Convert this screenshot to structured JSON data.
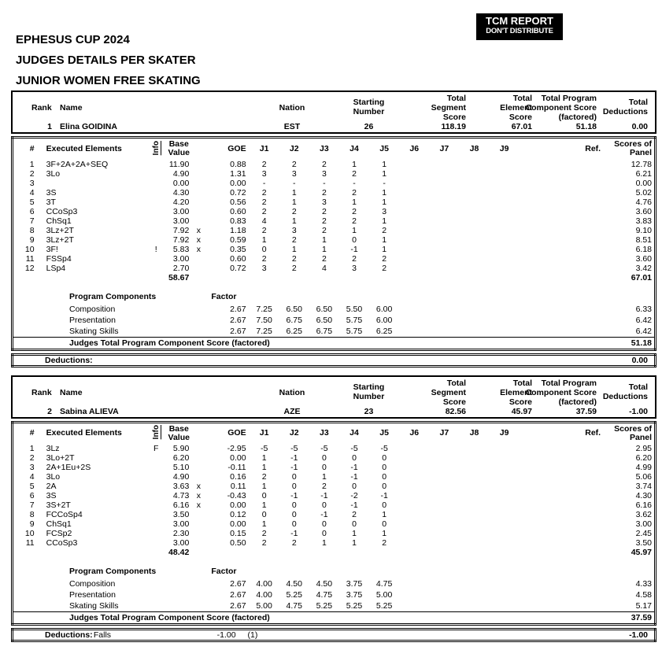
{
  "page": {
    "titles": [
      "EPHESUS CUP 2024",
      "JUDGES DETAILS PER SKATER",
      "JUNIOR WOMEN FREE SKATING"
    ],
    "stamp": {
      "line1": "TCM REPORT",
      "line2": "DON'T DISTRIBUTE"
    }
  },
  "summary_header": {
    "rank": "Rank",
    "name": "Name",
    "nation": "Nation",
    "starting": "Starting\nNumber",
    "segment": "Total\nSegment\nScore",
    "element": "Total\nElement\nScore",
    "pcs": "Total Program\nComponent Score\n(factored)",
    "deductions": "Total\nDeductions"
  },
  "elements_header": {
    "num": "#",
    "executed": "Executed Elements",
    "info": "Info",
    "base_value": "Base\nValue",
    "goe": "GOE",
    "judges": [
      "J1",
      "J2",
      "J3",
      "J4",
      "J5",
      "J6",
      "J7",
      "J8",
      "J9"
    ],
    "ref": "Ref.",
    "panel": "Scores of\nPanel"
  },
  "labels": {
    "program_components": "Program Components",
    "factor": "Factor",
    "judges_total": "Judges Total Program Component Score (factored)",
    "deductions": "Deductions:"
  },
  "skaters": [
    {
      "rank": "1",
      "name": "Elina GOIDINA",
      "nation": "EST",
      "starting_number": "26",
      "total_segment_score": "118.19",
      "total_element_score": "67.01",
      "total_pcs_factored": "51.18",
      "total_deductions": "0.00",
      "elements": [
        {
          "num": "1",
          "name": "3F+2A+2A+SEQ",
          "info": "",
          "bv": "11.90",
          "x": "",
          "goe": "0.88",
          "j": [
            "2",
            "2",
            "2",
            "1",
            "1"
          ],
          "panel": "12.78"
        },
        {
          "num": "2",
          "name": "3Lo",
          "info": "",
          "bv": "4.90",
          "x": "",
          "goe": "1.31",
          "j": [
            "3",
            "3",
            "3",
            "2",
            "1"
          ],
          "panel": "6.21"
        },
        {
          "num": "3",
          "name": "",
          "info": "",
          "bv": "0.00",
          "x": "",
          "goe": "0.00",
          "j": [
            "-",
            "-",
            "-",
            "-",
            "-"
          ],
          "panel": "0.00"
        },
        {
          "num": "4",
          "name": "3S",
          "info": "",
          "bv": "4.30",
          "x": "",
          "goe": "0.72",
          "j": [
            "2",
            "1",
            "2",
            "2",
            "1"
          ],
          "panel": "5.02"
        },
        {
          "num": "5",
          "name": "3T",
          "info": "",
          "bv": "4.20",
          "x": "",
          "goe": "0.56",
          "j": [
            "2",
            "1",
            "3",
            "1",
            "1"
          ],
          "panel": "4.76"
        },
        {
          "num": "6",
          "name": "CCoSp3",
          "info": "",
          "bv": "3.00",
          "x": "",
          "goe": "0.60",
          "j": [
            "2",
            "2",
            "2",
            "2",
            "3"
          ],
          "panel": "3.60"
        },
        {
          "num": "7",
          "name": "ChSq1",
          "info": "",
          "bv": "3.00",
          "x": "",
          "goe": "0.83",
          "j": [
            "4",
            "1",
            "2",
            "2",
            "1"
          ],
          "panel": "3.83"
        },
        {
          "num": "8",
          "name": "3Lz+2T",
          "info": "",
          "bv": "7.92",
          "x": "x",
          "goe": "1.18",
          "j": [
            "2",
            "3",
            "2",
            "1",
            "2"
          ],
          "panel": "9.10"
        },
        {
          "num": "9",
          "name": "3Lz+2T",
          "info": "",
          "bv": "7.92",
          "x": "x",
          "goe": "0.59",
          "j": [
            "1",
            "2",
            "1",
            "0",
            "1"
          ],
          "panel": "8.51"
        },
        {
          "num": "10",
          "name": "3F!",
          "info": "!",
          "bv": "5.83",
          "x": "x",
          "goe": "0.35",
          "j": [
            "0",
            "1",
            "1",
            "-1",
            "1"
          ],
          "panel": "6.18"
        },
        {
          "num": "11",
          "name": "FSSp4",
          "info": "",
          "bv": "3.00",
          "x": "",
          "goe": "0.60",
          "j": [
            "2",
            "2",
            "2",
            "2",
            "2"
          ],
          "panel": "3.60"
        },
        {
          "num": "12",
          "name": "LSp4",
          "info": "",
          "bv": "2.70",
          "x": "",
          "goe": "0.72",
          "j": [
            "3",
            "2",
            "4",
            "3",
            "2"
          ],
          "panel": "3.42"
        }
      ],
      "elements_bv_total": "58.67",
      "elements_panel_total": "67.01",
      "components": [
        {
          "name": "Composition",
          "factor": "2.67",
          "j": [
            "7.25",
            "6.50",
            "6.50",
            "5.50",
            "6.00"
          ],
          "panel": "6.33"
        },
        {
          "name": "Presentation",
          "factor": "2.67",
          "j": [
            "7.50",
            "6.75",
            "6.50",
            "5.75",
            "6.00"
          ],
          "panel": "6.42"
        },
        {
          "name": "Skating Skills",
          "factor": "2.67",
          "j": [
            "7.25",
            "6.25",
            "6.75",
            "5.75",
            "6.25"
          ],
          "panel": "6.42"
        }
      ],
      "judges_total_value": "51.18",
      "deductions": {
        "detail": "",
        "detail_value": "",
        "detail_count": "",
        "total": "0.00"
      }
    },
    {
      "rank": "2",
      "name": "Sabina ALIEVA",
      "nation": "AZE",
      "starting_number": "23",
      "total_segment_score": "82.56",
      "total_element_score": "45.97",
      "total_pcs_factored": "37.59",
      "total_deductions": "-1.00",
      "elements": [
        {
          "num": "1",
          "name": "3Lz",
          "info": "F",
          "bv": "5.90",
          "x": "",
          "goe": "-2.95",
          "j": [
            "-5",
            "-5",
            "-5",
            "-5",
            "-5"
          ],
          "panel": "2.95"
        },
        {
          "num": "2",
          "name": "3Lo+2T",
          "info": "",
          "bv": "6.20",
          "x": "",
          "goe": "0.00",
          "j": [
            "1",
            "-1",
            "0",
            "0",
            "0"
          ],
          "panel": "6.20"
        },
        {
          "num": "3",
          "name": "2A+1Eu+2S",
          "info": "",
          "bv": "5.10",
          "x": "",
          "goe": "-0.11",
          "j": [
            "1",
            "-1",
            "0",
            "-1",
            "0"
          ],
          "panel": "4.99"
        },
        {
          "num": "4",
          "name": "3Lo",
          "info": "",
          "bv": "4.90",
          "x": "",
          "goe": "0.16",
          "j": [
            "2",
            "0",
            "1",
            "-1",
            "0"
          ],
          "panel": "5.06"
        },
        {
          "num": "5",
          "name": "2A",
          "info": "",
          "bv": "3.63",
          "x": "x",
          "goe": "0.11",
          "j": [
            "1",
            "0",
            "2",
            "0",
            "0"
          ],
          "panel": "3.74"
        },
        {
          "num": "6",
          "name": "3S",
          "info": "",
          "bv": "4.73",
          "x": "x",
          "goe": "-0.43",
          "j": [
            "0",
            "-1",
            "-1",
            "-2",
            "-1"
          ],
          "panel": "4.30"
        },
        {
          "num": "7",
          "name": "3S+2T",
          "info": "",
          "bv": "6.16",
          "x": "x",
          "goe": "0.00",
          "j": [
            "1",
            "0",
            "0",
            "-1",
            "0"
          ],
          "panel": "6.16"
        },
        {
          "num": "8",
          "name": "FCCoSp4",
          "info": "",
          "bv": "3.50",
          "x": "",
          "goe": "0.12",
          "j": [
            "0",
            "0",
            "-1",
            "2",
            "1"
          ],
          "panel": "3.62"
        },
        {
          "num": "9",
          "name": "ChSq1",
          "info": "",
          "bv": "3.00",
          "x": "",
          "goe": "0.00",
          "j": [
            "1",
            "0",
            "0",
            "0",
            "0"
          ],
          "panel": "3.00"
        },
        {
          "num": "10",
          "name": "FCSp2",
          "info": "",
          "bv": "2.30",
          "x": "",
          "goe": "0.15",
          "j": [
            "2",
            "-1",
            "0",
            "1",
            "1"
          ],
          "panel": "2.45"
        },
        {
          "num": "11",
          "name": "CCoSp3",
          "info": "",
          "bv": "3.00",
          "x": "",
          "goe": "0.50",
          "j": [
            "2",
            "2",
            "1",
            "1",
            "2"
          ],
          "panel": "3.50"
        }
      ],
      "elements_bv_total": "48.42",
      "elements_panel_total": "45.97",
      "components": [
        {
          "name": "Composition",
          "factor": "2.67",
          "j": [
            "4.00",
            "4.50",
            "4.50",
            "3.75",
            "4.75"
          ],
          "panel": "4.33"
        },
        {
          "name": "Presentation",
          "factor": "2.67",
          "j": [
            "4.00",
            "5.25",
            "4.75",
            "3.75",
            "5.00"
          ],
          "panel": "4.58"
        },
        {
          "name": "Skating Skills",
          "factor": "2.67",
          "j": [
            "5.00",
            "4.75",
            "5.25",
            "5.25",
            "5.25"
          ],
          "panel": "5.17"
        }
      ],
      "judges_total_value": "37.59",
      "deductions": {
        "detail": "Falls",
        "detail_value": "-1.00",
        "detail_count": "(1)",
        "total": "-1.00"
      }
    }
  ]
}
